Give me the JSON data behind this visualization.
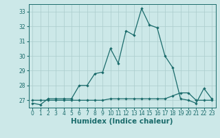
{
  "title": "",
  "xlabel": "Humidex (Indice chaleur)",
  "ylabel": "",
  "bg_color": "#cce8e8",
  "grid_color": "#aacccc",
  "line_color": "#1a6b6b",
  "x_main": [
    0,
    1,
    2,
    3,
    4,
    5,
    6,
    7,
    8,
    9,
    10,
    11,
    12,
    13,
    14,
    15,
    16,
    17,
    18,
    19,
    20,
    21,
    22,
    23
  ],
  "y_main": [
    26.8,
    26.7,
    27.1,
    27.1,
    27.1,
    27.1,
    28.0,
    28.0,
    28.8,
    28.9,
    30.5,
    29.5,
    31.7,
    31.4,
    33.2,
    32.1,
    31.9,
    30.0,
    29.2,
    27.1,
    27.0,
    26.8,
    27.8,
    27.1
  ],
  "x_flat": [
    0,
    1,
    2,
    3,
    4,
    5,
    6,
    7,
    8,
    9,
    10,
    11,
    12,
    13,
    14,
    15,
    16,
    17,
    18,
    19,
    20,
    21,
    22,
    23
  ],
  "y_flat": [
    27.0,
    27.0,
    27.0,
    27.0,
    27.0,
    27.0,
    27.0,
    27.0,
    27.0,
    27.0,
    27.1,
    27.1,
    27.1,
    27.1,
    27.1,
    27.1,
    27.1,
    27.1,
    27.3,
    27.5,
    27.5,
    27.0,
    27.0,
    27.0
  ],
  "ylim": [
    26.5,
    33.5
  ],
  "xlim": [
    -0.5,
    23.5
  ],
  "yticks": [
    27,
    28,
    29,
    30,
    31,
    32,
    33
  ],
  "xticks": [
    0,
    1,
    2,
    3,
    4,
    5,
    6,
    7,
    8,
    9,
    10,
    11,
    12,
    13,
    14,
    15,
    16,
    17,
    18,
    19,
    20,
    21,
    22,
    23
  ],
  "tick_fontsize": 5.5,
  "xlabel_fontsize": 7.5,
  "marker_size": 2.2,
  "line_width": 0.9
}
